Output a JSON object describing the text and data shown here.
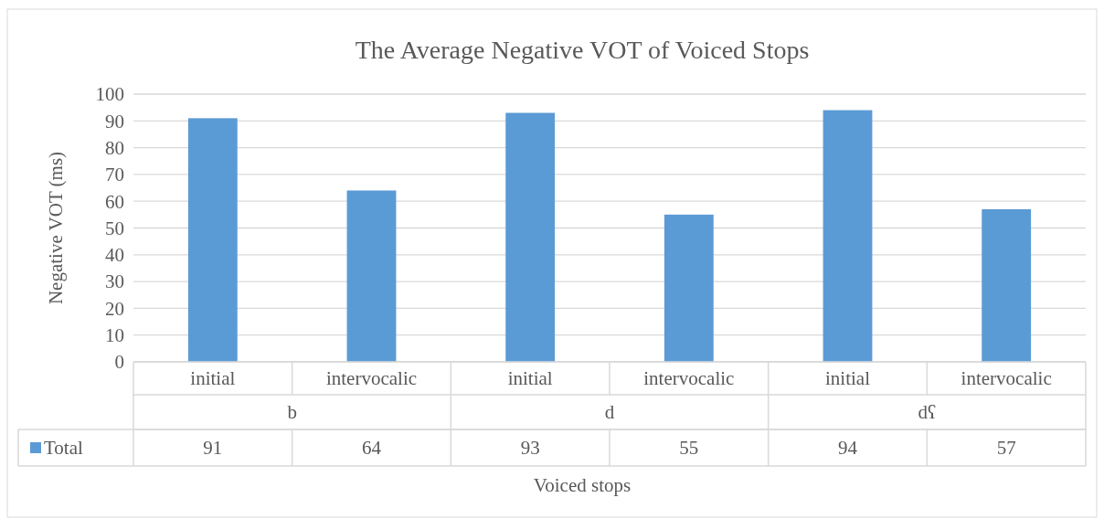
{
  "chart_data": {
    "type": "bar",
    "title": "The Average Negative VOT of Voiced Stops",
    "xlabel": "Voiced stops",
    "ylabel": "Negative VOT (ms)",
    "categories": [
      "initial",
      "intervocalic",
      "initial",
      "intervocalic",
      "initial",
      "intervocalic"
    ],
    "series": [
      {
        "name": "Total",
        "color": "#5b9bd5",
        "values": [
          91,
          64,
          93,
          55,
          94,
          57
        ]
      }
    ],
    "annotations": [
      "b",
      "d",
      "dʕ"
    ],
    "ylim": [
      0,
      100
    ],
    "yticks": [
      0,
      10,
      20,
      30,
      40,
      50,
      60,
      70,
      80,
      90,
      100
    ],
    "grid": "y",
    "data_labels": true,
    "legend": "bottom"
  }
}
